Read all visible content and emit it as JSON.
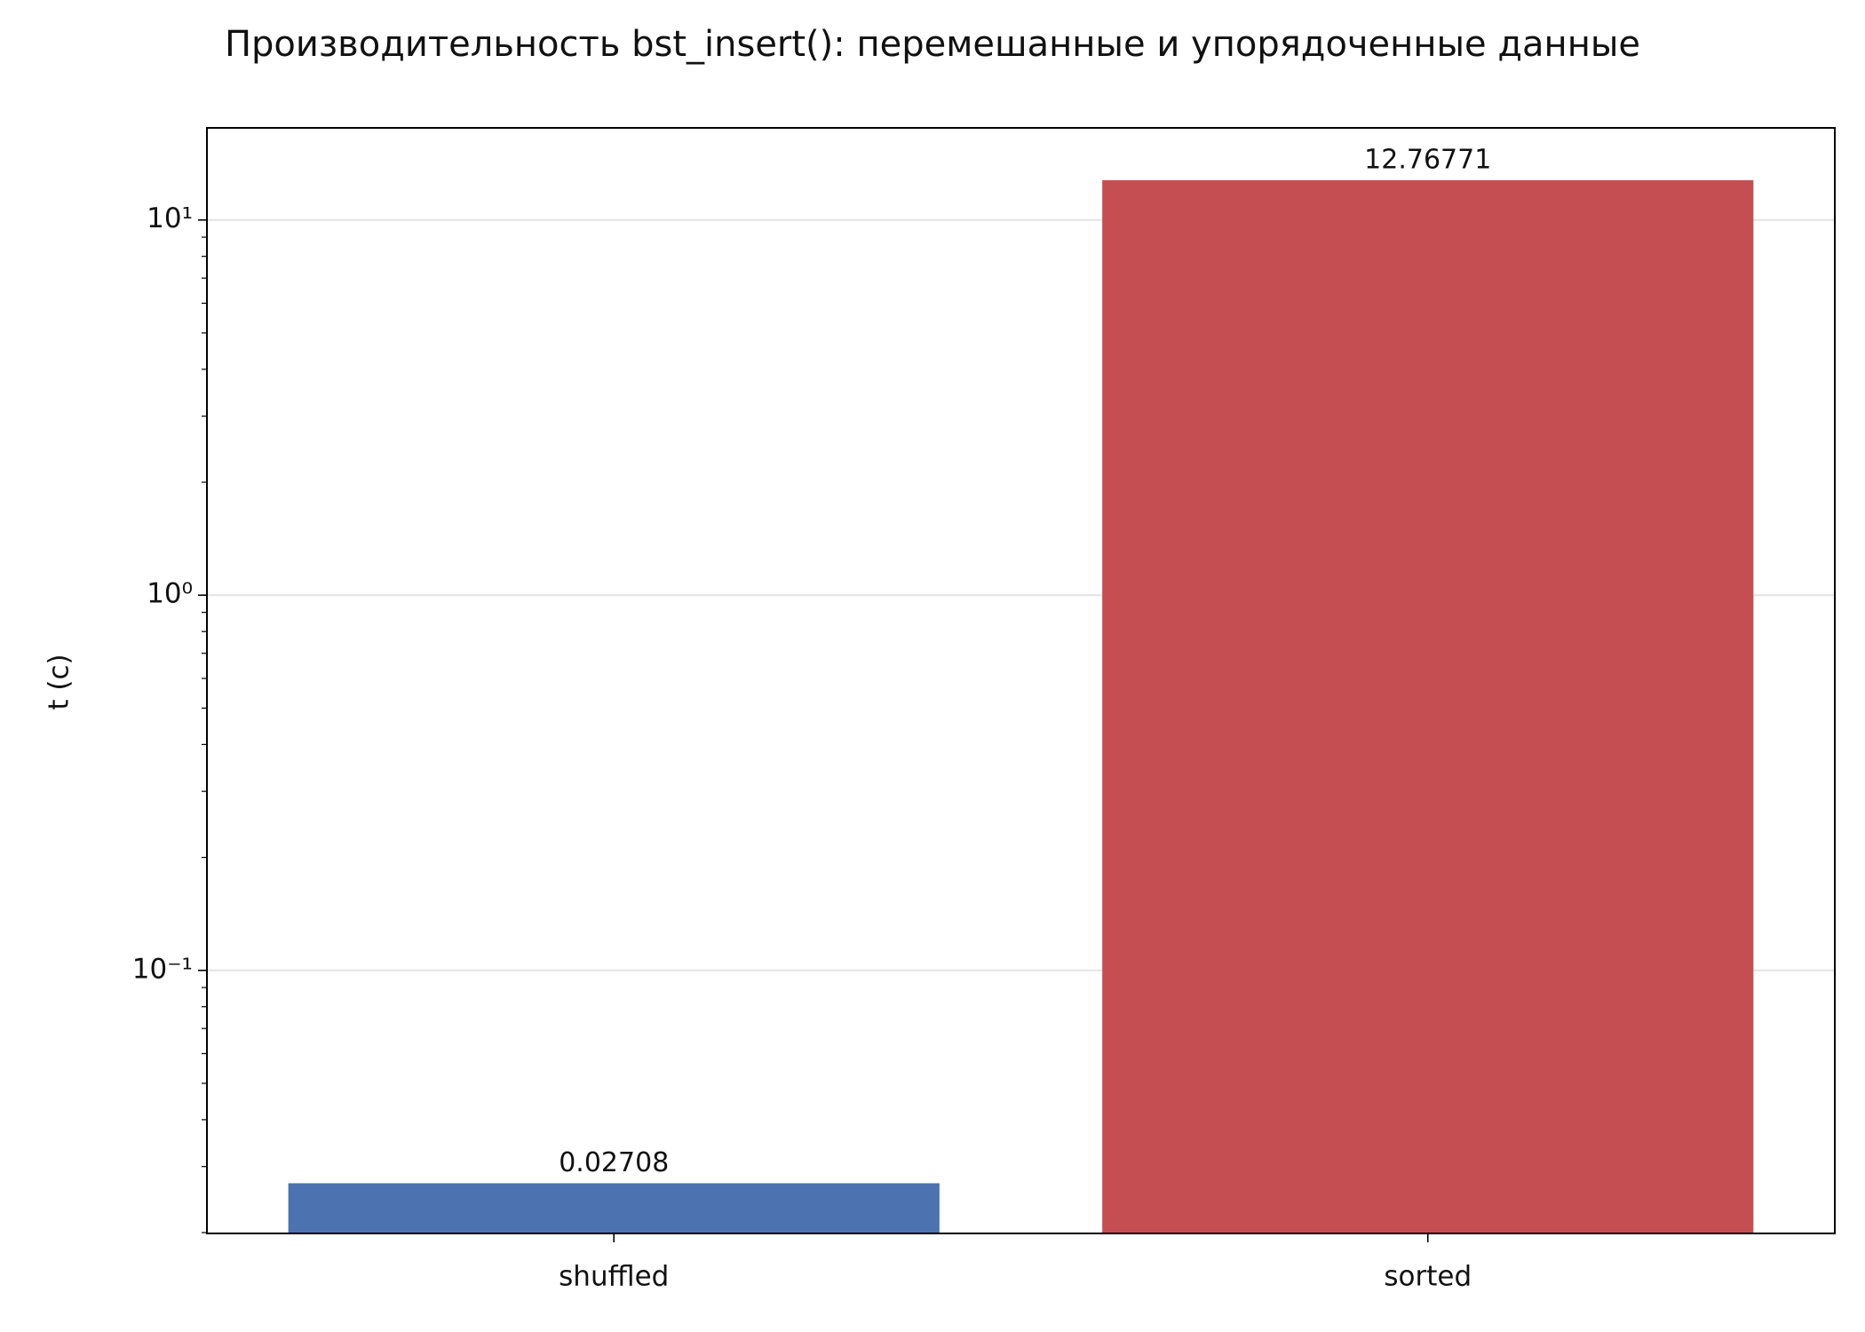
{
  "chart_data": {
    "type": "bar",
    "title": "Производительность bst_insert(): перемешанные и упорядоченные данные",
    "y_label": "t (с)",
    "categories": [
      "shuffled",
      "sorted"
    ],
    "values": [
      0.02708,
      12.76771
    ],
    "colors": [
      "#4c72b0",
      "#c44e52"
    ],
    "log_scale": true,
    "ylim": [
      0.0199,
      17.6
    ],
    "yticks": [
      {
        "value": 0.1,
        "label": "10⁻¹"
      },
      {
        "value": 1,
        "label": "10⁰"
      },
      {
        "value": 10,
        "label": "10¹"
      }
    ],
    "yticks_minor": [
      0.02,
      0.03,
      0.04,
      0.05,
      0.06,
      0.07,
      0.08,
      0.09,
      0.2,
      0.3,
      0.4,
      0.5,
      0.6,
      0.7,
      0.8,
      0.9,
      2,
      3,
      4,
      5,
      6,
      7,
      8,
      9
    ],
    "grid": true
  }
}
